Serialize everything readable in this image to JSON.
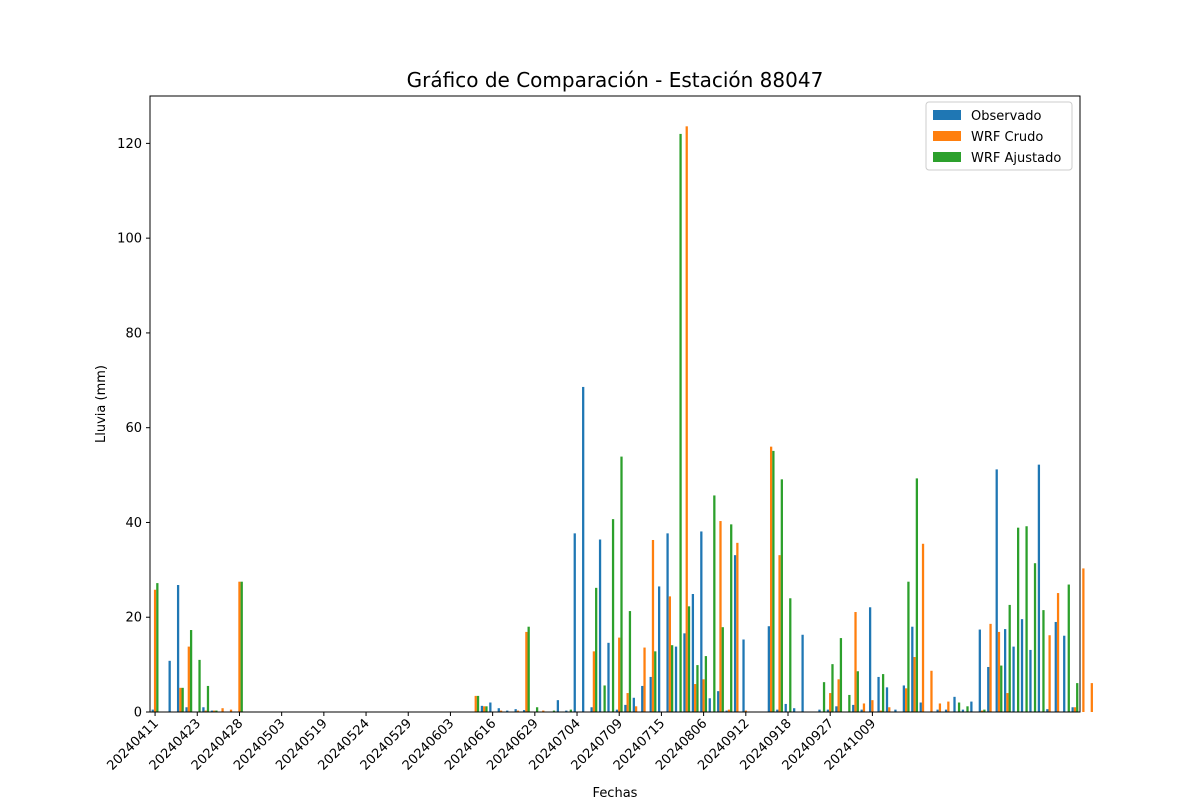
{
  "chart_data": {
    "type": "bar",
    "title": "Gráfico de Comparación - Estación 88047",
    "xlabel": "Fechas",
    "ylabel": "Lluvia (mm)",
    "ylim": [
      0,
      130
    ],
    "yticks": [
      0,
      20,
      40,
      60,
      80,
      100,
      120
    ],
    "xticklabels": [
      "20240411",
      "20240423",
      "20240428",
      "20240503",
      "20240519",
      "20240524",
      "20240529",
      "20240603",
      "20240616",
      "20240629",
      "20240704",
      "20240709",
      "20240715",
      "20240806",
      "20240912",
      "20240918",
      "20240927",
      "20241009"
    ],
    "xtick_every": 5,
    "legend_position": "top-right",
    "series": [
      {
        "name": "Observado",
        "color": "#1f77b4",
        "values": [
          0.5,
          0,
          10.8,
          26.8,
          1.0,
          0,
          1.0,
          0.3,
          0,
          0,
          0,
          0,
          0,
          0,
          0,
          0,
          0,
          0,
          0,
          0,
          0,
          0,
          0,
          0,
          0,
          0,
          0,
          0,
          0,
          0,
          0,
          0,
          0,
          0,
          0,
          0,
          0,
          0,
          0,
          1.3,
          2.0,
          0.8,
          0.3,
          0.6,
          0.4,
          0,
          0,
          0,
          2.5,
          0.3,
          37.7,
          68.6,
          1.0,
          36.4,
          14.6,
          0.5,
          1.5,
          3.0,
          5.5,
          7.4,
          26.5,
          37.7,
          13.8,
          16.6,
          24.9,
          38.1,
          2.9,
          4.4,
          0.3,
          33.1,
          15.3,
          0,
          0,
          18.1,
          0.5,
          1.7,
          0.8,
          16.3,
          0,
          0.5,
          0.5,
          1.2,
          0,
          1.5,
          0.5,
          22.1,
          7.4,
          5.2,
          0.5,
          5.6,
          18.0,
          2.0,
          0,
          0.5,
          0.5,
          3.2,
          0.5,
          2.2,
          17.4,
          9.5,
          51.2,
          17.5,
          13.8,
          19.6,
          13.1,
          52.2,
          0.6,
          19.0,
          16.1,
          1.0
        ]
      },
      {
        "name": "WRF Crudo",
        "color": "#ff7f0e",
        "values": [
          25.8,
          0,
          0,
          5.1,
          13.8,
          0,
          0.3,
          0.3,
          0.8,
          0.5,
          27.5,
          0,
          0,
          0,
          0,
          0,
          0,
          0,
          0,
          0,
          0,
          0,
          0,
          0,
          0,
          0,
          0,
          0,
          0,
          0,
          0,
          0,
          0,
          0,
          0,
          0,
          0,
          0,
          3.4,
          1.2,
          0,
          0.3,
          0,
          0.3,
          16.9,
          0,
          0.3,
          0,
          0,
          0,
          0,
          0,
          12.8,
          0,
          0,
          15.7,
          4.0,
          1.2,
          13.6,
          36.3,
          0,
          24.4,
          0,
          123.6,
          5.9,
          6.9,
          0,
          40.3,
          0.5,
          35.7,
          0.3,
          0,
          0,
          56.0,
          33.1,
          0,
          0,
          0,
          0,
          0,
          4.0,
          6.9,
          0,
          21.1,
          1.8,
          2.5,
          0.3,
          1.0,
          0,
          5.0,
          11.6,
          35.5,
          8.7,
          1.8,
          2.2,
          0,
          0,
          0,
          0.3,
          18.6,
          16.9,
          4.0,
          0,
          0,
          0,
          0,
          16.2,
          25.1,
          0,
          1.0,
          30.3,
          6.1
        ]
      },
      {
        "name": "WRF Ajustado",
        "color": "#2ca02c",
        "values": [
          27.2,
          0,
          0,
          5.1,
          17.3,
          11.0,
          5.5,
          0.3,
          0,
          0,
          27.5,
          0,
          0,
          0,
          0,
          0,
          0,
          0,
          0,
          0,
          0,
          0,
          0,
          0,
          0,
          0,
          0,
          0,
          0,
          0,
          0,
          0,
          0,
          0,
          0,
          0,
          0,
          0,
          3.4,
          1.2,
          0,
          0,
          0,
          0,
          18.0,
          1.0,
          0,
          0.3,
          0,
          0.5,
          0,
          0,
          26.2,
          5.6,
          40.7,
          53.9,
          21.3,
          0,
          0,
          12.8,
          0,
          14.1,
          122.0,
          22.3,
          9.9,
          11.8,
          45.7,
          17.9,
          39.6,
          0,
          0,
          0,
          0,
          55.1,
          49.1,
          24.0,
          0,
          0,
          0,
          6.3,
          10.1,
          15.6,
          3.6,
          8.6,
          0,
          0,
          8.0,
          0,
          0,
          27.5,
          49.3,
          0,
          0,
          0,
          0,
          2.0,
          1.2,
          0,
          0.5,
          0,
          9.8,
          22.6,
          38.9,
          39.2,
          31.4,
          21.5,
          0,
          0,
          26.9,
          6.1,
          0
        ]
      }
    ]
  }
}
